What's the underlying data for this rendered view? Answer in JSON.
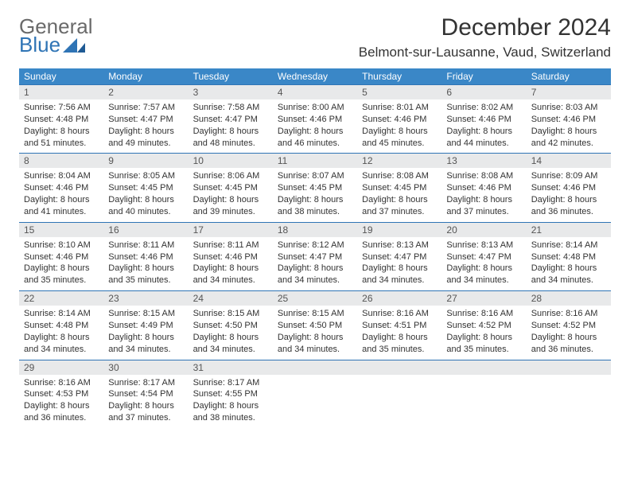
{
  "brand": {
    "name1": "General",
    "name2": "Blue"
  },
  "title": "December 2024",
  "location": "Belmont-sur-Lausanne, Vaud, Switzerland",
  "colors": {
    "header_bg": "#3a87c7",
    "header_text": "#ffffff",
    "daynum_bg": "#e8e9ea",
    "rule": "#2f74b5",
    "logo_gray": "#6a6a6a",
    "logo_blue": "#2f74b5"
  },
  "weekdays": [
    "Sunday",
    "Monday",
    "Tuesday",
    "Wednesday",
    "Thursday",
    "Friday",
    "Saturday"
  ],
  "days": [
    {
      "n": "1",
      "sunrise": "7:56 AM",
      "sunset": "4:48 PM",
      "daylight": "8 hours and 51 minutes."
    },
    {
      "n": "2",
      "sunrise": "7:57 AM",
      "sunset": "4:47 PM",
      "daylight": "8 hours and 49 minutes."
    },
    {
      "n": "3",
      "sunrise": "7:58 AM",
      "sunset": "4:47 PM",
      "daylight": "8 hours and 48 minutes."
    },
    {
      "n": "4",
      "sunrise": "8:00 AM",
      "sunset": "4:46 PM",
      "daylight": "8 hours and 46 minutes."
    },
    {
      "n": "5",
      "sunrise": "8:01 AM",
      "sunset": "4:46 PM",
      "daylight": "8 hours and 45 minutes."
    },
    {
      "n": "6",
      "sunrise": "8:02 AM",
      "sunset": "4:46 PM",
      "daylight": "8 hours and 44 minutes."
    },
    {
      "n": "7",
      "sunrise": "8:03 AM",
      "sunset": "4:46 PM",
      "daylight": "8 hours and 42 minutes."
    },
    {
      "n": "8",
      "sunrise": "8:04 AM",
      "sunset": "4:46 PM",
      "daylight": "8 hours and 41 minutes."
    },
    {
      "n": "9",
      "sunrise": "8:05 AM",
      "sunset": "4:45 PM",
      "daylight": "8 hours and 40 minutes."
    },
    {
      "n": "10",
      "sunrise": "8:06 AM",
      "sunset": "4:45 PM",
      "daylight": "8 hours and 39 minutes."
    },
    {
      "n": "11",
      "sunrise": "8:07 AM",
      "sunset": "4:45 PM",
      "daylight": "8 hours and 38 minutes."
    },
    {
      "n": "12",
      "sunrise": "8:08 AM",
      "sunset": "4:45 PM",
      "daylight": "8 hours and 37 minutes."
    },
    {
      "n": "13",
      "sunrise": "8:08 AM",
      "sunset": "4:46 PM",
      "daylight": "8 hours and 37 minutes."
    },
    {
      "n": "14",
      "sunrise": "8:09 AM",
      "sunset": "4:46 PM",
      "daylight": "8 hours and 36 minutes."
    },
    {
      "n": "15",
      "sunrise": "8:10 AM",
      "sunset": "4:46 PM",
      "daylight": "8 hours and 35 minutes."
    },
    {
      "n": "16",
      "sunrise": "8:11 AM",
      "sunset": "4:46 PM",
      "daylight": "8 hours and 35 minutes."
    },
    {
      "n": "17",
      "sunrise": "8:11 AM",
      "sunset": "4:46 PM",
      "daylight": "8 hours and 34 minutes."
    },
    {
      "n": "18",
      "sunrise": "8:12 AM",
      "sunset": "4:47 PM",
      "daylight": "8 hours and 34 minutes."
    },
    {
      "n": "19",
      "sunrise": "8:13 AM",
      "sunset": "4:47 PM",
      "daylight": "8 hours and 34 minutes."
    },
    {
      "n": "20",
      "sunrise": "8:13 AM",
      "sunset": "4:47 PM",
      "daylight": "8 hours and 34 minutes."
    },
    {
      "n": "21",
      "sunrise": "8:14 AM",
      "sunset": "4:48 PM",
      "daylight": "8 hours and 34 minutes."
    },
    {
      "n": "22",
      "sunrise": "8:14 AM",
      "sunset": "4:48 PM",
      "daylight": "8 hours and 34 minutes."
    },
    {
      "n": "23",
      "sunrise": "8:15 AM",
      "sunset": "4:49 PM",
      "daylight": "8 hours and 34 minutes."
    },
    {
      "n": "24",
      "sunrise": "8:15 AM",
      "sunset": "4:50 PM",
      "daylight": "8 hours and 34 minutes."
    },
    {
      "n": "25",
      "sunrise": "8:15 AM",
      "sunset": "4:50 PM",
      "daylight": "8 hours and 34 minutes."
    },
    {
      "n": "26",
      "sunrise": "8:16 AM",
      "sunset": "4:51 PM",
      "daylight": "8 hours and 35 minutes."
    },
    {
      "n": "27",
      "sunrise": "8:16 AM",
      "sunset": "4:52 PM",
      "daylight": "8 hours and 35 minutes."
    },
    {
      "n": "28",
      "sunrise": "8:16 AM",
      "sunset": "4:52 PM",
      "daylight": "8 hours and 36 minutes."
    },
    {
      "n": "29",
      "sunrise": "8:16 AM",
      "sunset": "4:53 PM",
      "daylight": "8 hours and 36 minutes."
    },
    {
      "n": "30",
      "sunrise": "8:17 AM",
      "sunset": "4:54 PM",
      "daylight": "8 hours and 37 minutes."
    },
    {
      "n": "31",
      "sunrise": "8:17 AM",
      "sunset": "4:55 PM",
      "daylight": "8 hours and 38 minutes."
    }
  ],
  "labels": {
    "sunrise": "Sunrise: ",
    "sunset": "Sunset: ",
    "daylight": "Daylight: "
  },
  "layout": {
    "start_weekday": 0,
    "trailing_empty": 4,
    "cols": 7
  }
}
